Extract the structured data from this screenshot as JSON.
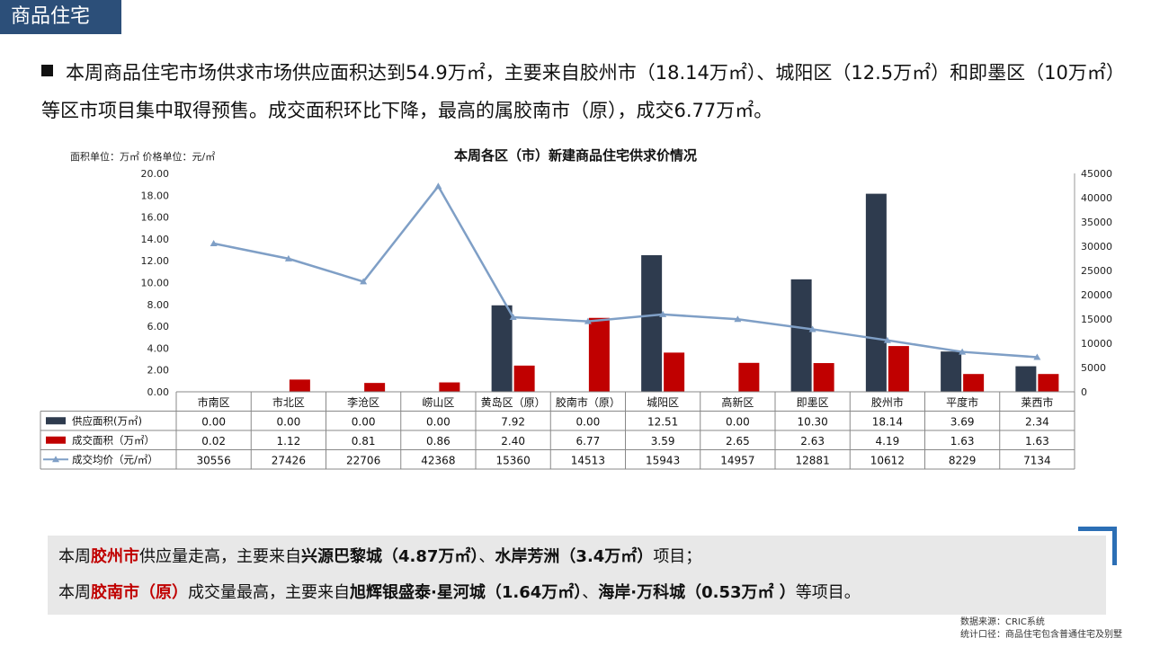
{
  "header": {
    "title": "商品住宅"
  },
  "bullet": {
    "text": "本周商品住宅市场供求市场供应面积达到54.9万㎡，主要来自胶州市（18.14万㎡）、城阳区（12.5万㎡）和即墨区（10万㎡）等区市项目集中取得预售。成交面积环比下降，最高的属胶南市（原），成交6.77万㎡。"
  },
  "chart_data": {
    "type": "bar",
    "title": "本周各区（市）新建商品住宅供求价情况",
    "unit_note": "面积单位：万㎡ 价格单位：元/㎡",
    "categories": [
      "市南区",
      "市北区",
      "李沧区",
      "崂山区",
      "黄岛区（原）",
      "胶南市（原）",
      "城阳区",
      "高新区",
      "即墨区",
      "胶州市",
      "平度市",
      "莱西市"
    ],
    "series": [
      {
        "name": "供应面积(万㎡)",
        "kind": "bar",
        "axis": "left",
        "color": "#2e3b4e",
        "values": [
          0.0,
          0.0,
          0.0,
          0.0,
          7.92,
          0.0,
          12.51,
          0.0,
          10.3,
          18.14,
          3.69,
          2.34
        ],
        "labels": [
          "0.00",
          "0.00",
          "0.00",
          "0.00",
          "7.92",
          "0.00",
          "12.51",
          "0.00",
          "10.30",
          "18.14",
          "3.69",
          "2.34"
        ]
      },
      {
        "name": "成交面积（万㎡）",
        "kind": "bar",
        "axis": "left",
        "color": "#c00000",
        "values": [
          0.02,
          1.12,
          0.81,
          0.86,
          2.4,
          6.77,
          3.59,
          2.65,
          2.63,
          4.19,
          1.63,
          1.63
        ],
        "labels": [
          "0.02",
          "1.12",
          "0.81",
          "0.86",
          "2.40",
          "6.77",
          "3.59",
          "2.65",
          "2.63",
          "4.19",
          "1.63",
          "1.63"
        ]
      },
      {
        "name": "成交均价（元/㎡）",
        "kind": "line",
        "axis": "right",
        "color": "#7f9fc6",
        "values": [
          30556,
          27426,
          22706,
          42368,
          15360,
          14513,
          15943,
          14957,
          12881,
          10612,
          8229,
          7134
        ],
        "labels": [
          "30556",
          "27426",
          "22706",
          "42368",
          "15360",
          "14513",
          "15943",
          "14957",
          "12881",
          "10612",
          "8229",
          "7134"
        ]
      }
    ],
    "ylim_left": [
      0,
      20
    ],
    "yticks_left": [
      "0.00",
      "2.00",
      "4.00",
      "6.00",
      "8.00",
      "10.00",
      "12.00",
      "14.00",
      "16.00",
      "18.00",
      "20.00"
    ],
    "ylim_right": [
      0,
      45000
    ],
    "yticks_right": [
      "0",
      "5000",
      "10000",
      "15000",
      "20000",
      "25000",
      "30000",
      "35000",
      "40000",
      "45000"
    ],
    "legend": "data-table"
  },
  "summary": {
    "line1": {
      "p1": "本周",
      "hl": "胶州市",
      "p2": "供应量走高，主要来自",
      "b1": "兴源巴黎城（4.87万㎡）",
      "p3": "、",
      "b2": "水岸芳洲（3.4万㎡）",
      "p4": "项目；"
    },
    "line2": {
      "p1": "本周",
      "hl": "胶南市（原）",
      "p2": "成交量最高，主要来自",
      "b1": "旭辉银盛泰·星河城（1.64万㎡）",
      "p3": "、",
      "b2": "海岸·万科城（0.53万㎡ ）",
      "p4": "等项目。"
    }
  },
  "source": {
    "line1": "数据来源：CRIC系统",
    "line2": "统计口径：商品住宅包含普通住宅及别墅"
  }
}
